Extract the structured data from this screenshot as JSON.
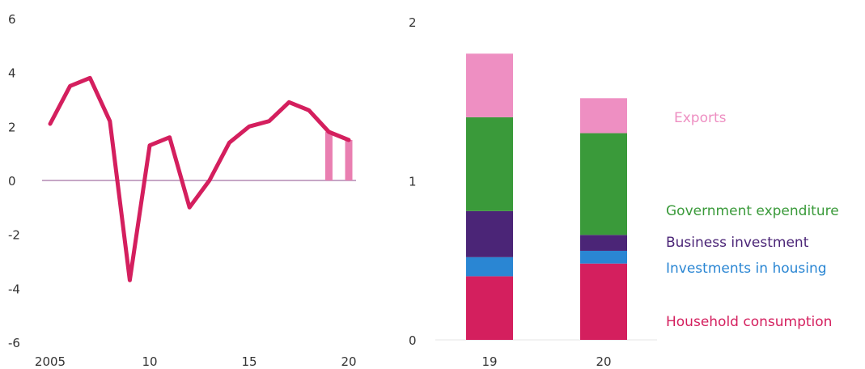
{
  "chart_data": [
    {
      "type": "line",
      "title": "",
      "xlabel": "",
      "ylabel": "",
      "ylim": [
        -6,
        6
      ],
      "xlim": [
        2005,
        2020
      ],
      "x_tick_labels": [
        "2005",
        "10",
        "15",
        "20"
      ],
      "x_tick_values": [
        2005,
        2010,
        2015,
        2020
      ],
      "y_tick_labels": [
        "6",
        "4",
        "2",
        "0",
        "-2",
        "-4",
        "-6"
      ],
      "y_tick_values": [
        6,
        4,
        2,
        0,
        -2,
        -4,
        -6
      ],
      "grid": false,
      "line_color": "#d41f5e",
      "zero_line_color": "#b48ab4",
      "series": [
        {
          "x": [
            2005,
            2006,
            2007,
            2008,
            2009,
            2010,
            2011,
            2012,
            2013,
            2014,
            2015,
            2016,
            2017,
            2018,
            2019,
            2020
          ],
          "values": [
            2.1,
            3.5,
            3.8,
            2.2,
            -3.7,
            1.3,
            1.6,
            -1.0,
            0.0,
            1.4,
            2.0,
            2.2,
            2.9,
            2.6,
            1.8,
            1.5
          ]
        }
      ],
      "highlight_bars": {
        "color": "#e97fb1",
        "x": [
          2019,
          2020
        ],
        "values": [
          1.8,
          1.5
        ]
      }
    },
    {
      "type": "bar",
      "stacked": true,
      "title": "",
      "xlabel": "",
      "ylabel": "",
      "ylim": [
        0,
        2
      ],
      "y_tick_labels": [
        "2",
        "1",
        "0"
      ],
      "y_tick_values": [
        2,
        1,
        0
      ],
      "categories": [
        "19",
        "20"
      ],
      "grid": false,
      "legend_position": "right",
      "series": [
        {
          "name": "Household consumption",
          "color": "#d41f5e",
          "values": [
            0.4,
            0.48
          ]
        },
        {
          "name": "Investments in housing",
          "color": "#2a86d3",
          "values": [
            0.12,
            0.08
          ]
        },
        {
          "name": "Business investment",
          "color": "#4b2577",
          "values": [
            0.29,
            0.1
          ]
        },
        {
          "name": "Government expenditure",
          "color": "#3a9a3a",
          "values": [
            0.59,
            0.64
          ]
        },
        {
          "name": "Exports",
          "color": "#ee8fc2",
          "values": [
            0.4,
            0.22
          ]
        }
      ]
    }
  ]
}
